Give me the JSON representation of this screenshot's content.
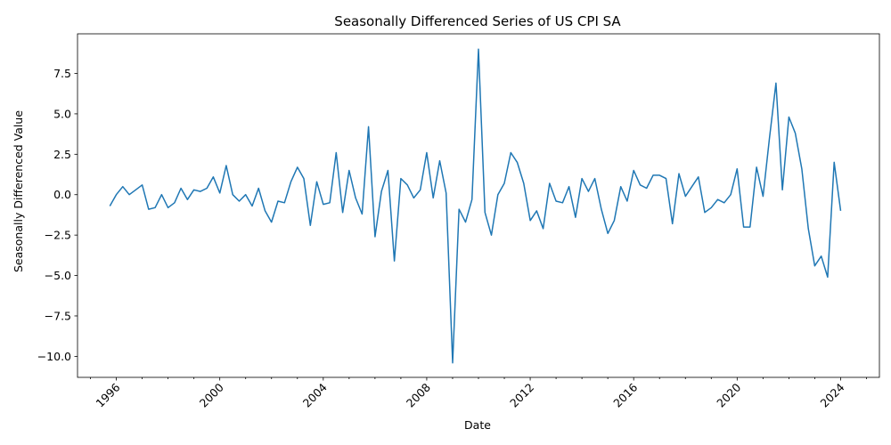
{
  "chart_data": {
    "type": "line",
    "title": "Seasonally Differenced Series of US CPI SA",
    "xlabel": "Date",
    "ylabel": "Seasonally Differenced Value",
    "xlim": [
      1994.5,
      2025.5
    ],
    "ylim": [
      -11.3,
      9.95
    ],
    "grid": false,
    "x_ticks": [
      1996,
      2000,
      2004,
      2008,
      2012,
      2016,
      2020,
      2024
    ],
    "y_ticks": [
      -10.0,
      -7.5,
      -5.0,
      -2.5,
      0.0,
      2.5,
      5.0,
      7.5
    ],
    "series": [
      {
        "color": "#1f77b4",
        "x": [
          1995.75,
          1996.0,
          1996.25,
          1996.5,
          1996.75,
          1997.0,
          1997.25,
          1997.5,
          1997.75,
          1998.0,
          1998.25,
          1998.5,
          1998.75,
          1999.0,
          1999.25,
          1999.5,
          1999.75,
          2000.0,
          2000.25,
          2000.5,
          2000.75,
          2001.0,
          2001.25,
          2001.5,
          2001.75,
          2002.0,
          2002.25,
          2002.5,
          2002.75,
          2003.0,
          2003.25,
          2003.5,
          2003.75,
          2004.0,
          2004.25,
          2004.5,
          2004.75,
          2005.0,
          2005.25,
          2005.5,
          2005.75,
          2006.0,
          2006.25,
          2006.5,
          2006.75,
          2007.0,
          2007.25,
          2007.5,
          2007.75,
          2008.0,
          2008.25,
          2008.5,
          2008.75,
          2009.0,
          2009.25,
          2009.5,
          2009.75,
          2010.0,
          2010.25,
          2010.5,
          2010.75,
          2011.0,
          2011.25,
          2011.5,
          2011.75,
          2012.0,
          2012.25,
          2012.5,
          2012.75,
          2013.0,
          2013.25,
          2013.5,
          2013.75,
          2014.0,
          2014.25,
          2014.5,
          2014.75,
          2015.0,
          2015.25,
          2015.5,
          2015.75,
          2016.0,
          2016.25,
          2016.5,
          2016.75,
          2017.0,
          2017.25,
          2017.5,
          2017.75,
          2018.0,
          2018.25,
          2018.5,
          2018.75,
          2019.0,
          2019.25,
          2019.5,
          2019.75,
          2020.0,
          2020.25,
          2020.5,
          2020.75,
          2021.0,
          2021.25,
          2021.5,
          2021.75,
          2022.0,
          2022.25,
          2022.5,
          2022.75,
          2023.0,
          2023.25,
          2023.5,
          2023.75,
          2024.0
        ],
        "values": [
          -0.7,
          0.0,
          0.5,
          0.0,
          0.3,
          0.6,
          -0.9,
          -0.8,
          0.0,
          -0.8,
          -0.5,
          0.4,
          -0.3,
          0.3,
          0.2,
          0.4,
          1.1,
          0.1,
          1.8,
          0.0,
          -0.4,
          0.0,
          -0.7,
          0.4,
          -1.0,
          -1.7,
          -0.4,
          -0.5,
          0.8,
          1.7,
          1.0,
          -1.9,
          0.8,
          -0.6,
          -0.5,
          2.6,
          -1.1,
          1.5,
          -0.2,
          -1.2,
          4.2,
          -2.6,
          0.2,
          1.5,
          -4.1,
          1.0,
          0.6,
          -0.2,
          0.3,
          2.6,
          -0.2,
          2.1,
          0.1,
          -10.4,
          -0.9,
          -1.7,
          -0.3,
          9.0,
          -1.1,
          -2.5,
          0.0,
          0.7,
          2.6,
          2.0,
          0.7,
          -1.6,
          -1.0,
          -2.1,
          0.7,
          -0.4,
          -0.5,
          0.5,
          -1.4,
          1.0,
          0.2,
          1.0,
          -0.9,
          -2.4,
          -1.6,
          0.5,
          -0.4,
          1.5,
          0.6,
          0.4,
          1.2,
          1.2,
          1.0,
          -1.8,
          1.3,
          -0.1,
          0.5,
          1.1,
          -1.1,
          -0.8,
          -0.3,
          -0.5,
          0.0,
          1.6,
          -2.0,
          -2.0,
          1.7,
          -0.1,
          3.5,
          6.9,
          0.3,
          4.8,
          3.8,
          1.6,
          -2.1,
          -4.4,
          -3.8,
          -5.1,
          2.0,
          -1.0
        ]
      }
    ]
  }
}
